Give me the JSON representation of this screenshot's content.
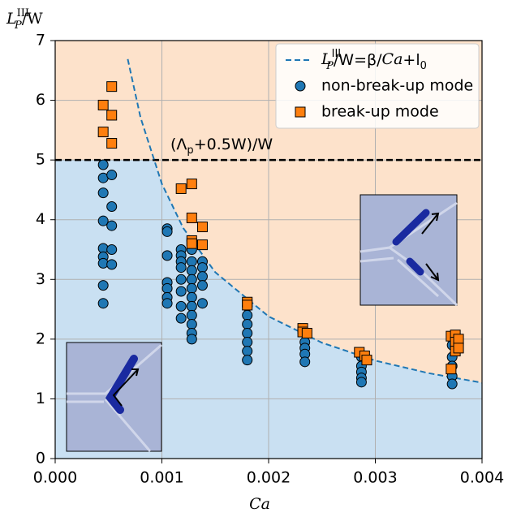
{
  "chart_data": {
    "type": "scatter",
    "ylabel": [
      "L",
      "III",
      "P",
      "/W"
    ],
    "xlabel": "Ca",
    "annotation": {
      "text": [
        "(Λ",
        "p",
        "+0.5W)/W"
      ],
      "y": 5
    },
    "xlim": [
      0,
      0.004
    ],
    "ylim": [
      0,
      7
    ],
    "xticks": [
      {
        "value": 0,
        "label": "0.000"
      },
      {
        "value": 0.001,
        "label": "0.001"
      },
      {
        "value": 0.002,
        "label": "0.002"
      },
      {
        "value": 0.003,
        "label": "0.003"
      },
      {
        "value": 0.004,
        "label": "0.004"
      }
    ],
    "yticks": [
      0,
      1,
      2,
      3,
      4,
      5,
      6,
      7
    ],
    "grid": true,
    "legend": "upper right",
    "region_colors": {
      "below": "#c9e0f2",
      "above": "#fde2cb"
    },
    "series": [
      {
        "name": [
          "L",
          "III",
          "P",
          "/W=β/",
          "Ca",
          "+l",
          "0"
        ],
        "kind": "line",
        "color": "#1f77b4",
        "x": [
          0.00068,
          0.0008,
          0.001,
          0.0012,
          0.0015,
          0.002,
          0.0025,
          0.003,
          0.0035,
          0.004
        ],
        "values": [
          6.69,
          5.71,
          4.6,
          3.86,
          3.12,
          2.38,
          1.94,
          1.64,
          1.43,
          1.27
        ]
      },
      {
        "name": "non-break-up mode",
        "kind": "circle",
        "color": "#1f77b4",
        "x": [
          0.00045,
          0.00045,
          0.00045,
          0.00045,
          0.00045,
          0.00045,
          0.00045,
          0.00045,
          0.00045,
          0.00053,
          0.00053,
          0.00053,
          0.00053,
          0.00053,
          0.00105,
          0.00105,
          0.00105,
          0.00105,
          0.00105,
          0.00105,
          0.00105,
          0.00118,
          0.00118,
          0.00118,
          0.00118,
          0.00118,
          0.00118,
          0.00118,
          0.00118,
          0.00128,
          0.00128,
          0.00128,
          0.00128,
          0.00128,
          0.00128,
          0.00128,
          0.00128,
          0.00128,
          0.00128,
          0.00128,
          0.00128,
          0.00138,
          0.00138,
          0.00138,
          0.00138,
          0.00138,
          0.0018,
          0.0018,
          0.0018,
          0.0018,
          0.0018,
          0.0018,
          0.0018,
          0.00234,
          0.00234,
          0.00234,
          0.00234,
          0.00234,
          0.00287,
          0.00287,
          0.00287,
          0.00287,
          0.00287,
          0.00372,
          0.00372,
          0.00372,
          0.00372,
          0.00372
        ],
        "values": [
          4.92,
          4.7,
          4.45,
          3.98,
          3.52,
          3.38,
          3.27,
          2.9,
          2.6,
          4.75,
          4.22,
          3.9,
          3.5,
          3.25,
          3.85,
          3.8,
          3.4,
          2.95,
          2.85,
          2.7,
          2.6,
          3.5,
          3.4,
          3.3,
          3.2,
          3.0,
          2.8,
          2.55,
          2.35,
          3.65,
          3.5,
          3.3,
          3.15,
          3.0,
          2.85,
          2.7,
          2.55,
          2.4,
          2.25,
          2.1,
          2.0,
          3.3,
          3.2,
          3.05,
          2.9,
          2.6,
          2.55,
          2.4,
          2.25,
          2.1,
          1.95,
          1.8,
          1.65,
          2.1,
          1.95,
          1.85,
          1.75,
          1.62,
          1.7,
          1.55,
          1.45,
          1.35,
          1.28,
          1.9,
          1.7,
          1.55,
          1.38,
          1.25
        ]
      },
      {
        "name": "break-up mode",
        "kind": "square",
        "color": "#ff7f0e",
        "x": [
          0.00045,
          0.00045,
          0.00053,
          0.00053,
          0.00053,
          0.00118,
          0.00128,
          0.00128,
          0.00128,
          0.00128,
          0.00138,
          0.00138,
          0.0018,
          0.0018,
          0.00232,
          0.00232,
          0.00236,
          0.00285,
          0.0029,
          0.00292,
          0.00371,
          0.00371,
          0.00375,
          0.00375,
          0.00375,
          0.00378,
          0.00378
        ],
        "values": [
          5.92,
          5.47,
          6.23,
          5.75,
          5.28,
          4.52,
          4.6,
          4.03,
          3.65,
          3.6,
          3.88,
          3.58,
          2.62,
          2.57,
          2.18,
          2.12,
          2.1,
          1.78,
          1.72,
          1.65,
          2.05,
          1.5,
          2.07,
          1.95,
          1.8,
          2.0,
          1.85
        ]
      }
    ]
  }
}
